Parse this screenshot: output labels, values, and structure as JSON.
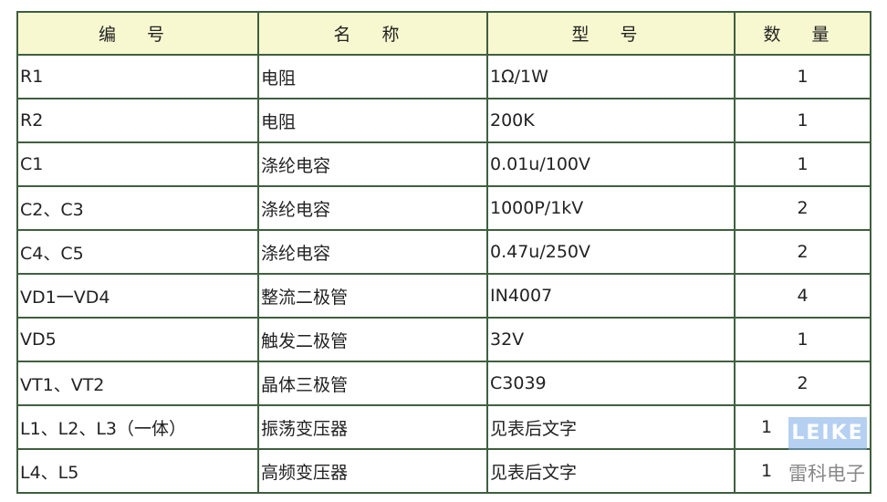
{
  "headers": [
    "编 号",
    "名 称",
    "型 号",
    "数 量"
  ],
  "rows": [
    [
      "R1",
      "电阻",
      "1Ω/1W",
      "1"
    ],
    [
      "R2",
      "电阻",
      "200K",
      "1"
    ],
    [
      "C1",
      "涤纶电容",
      "0.01u/100V",
      "1"
    ],
    [
      "C2、C3",
      "涤纶电容",
      "1000P/1kV",
      "2"
    ],
    [
      "C4、C5",
      "涤纶电容",
      "0.47u/250V",
      "2"
    ],
    [
      "VD1一VD4",
      "整流二极管",
      "IN4007",
      "4"
    ],
    [
      "VD5",
      "触发二极管",
      "32V",
      "1"
    ],
    [
      "VT1、VT2",
      "晶体三极管",
      "C3039",
      "2"
    ],
    [
      "L1、L2、L3（一体）",
      "振荡变压器",
      "见表后文字",
      "1"
    ],
    [
      "L4、L5",
      "高频变压器",
      "见表后文字",
      "1"
    ]
  ],
  "watermark": {
    "logo": "LEIKE",
    "text": "雷科电子"
  },
  "colors": {
    "border": "#3f5f3f",
    "header_bg": "#f8f8d0"
  }
}
